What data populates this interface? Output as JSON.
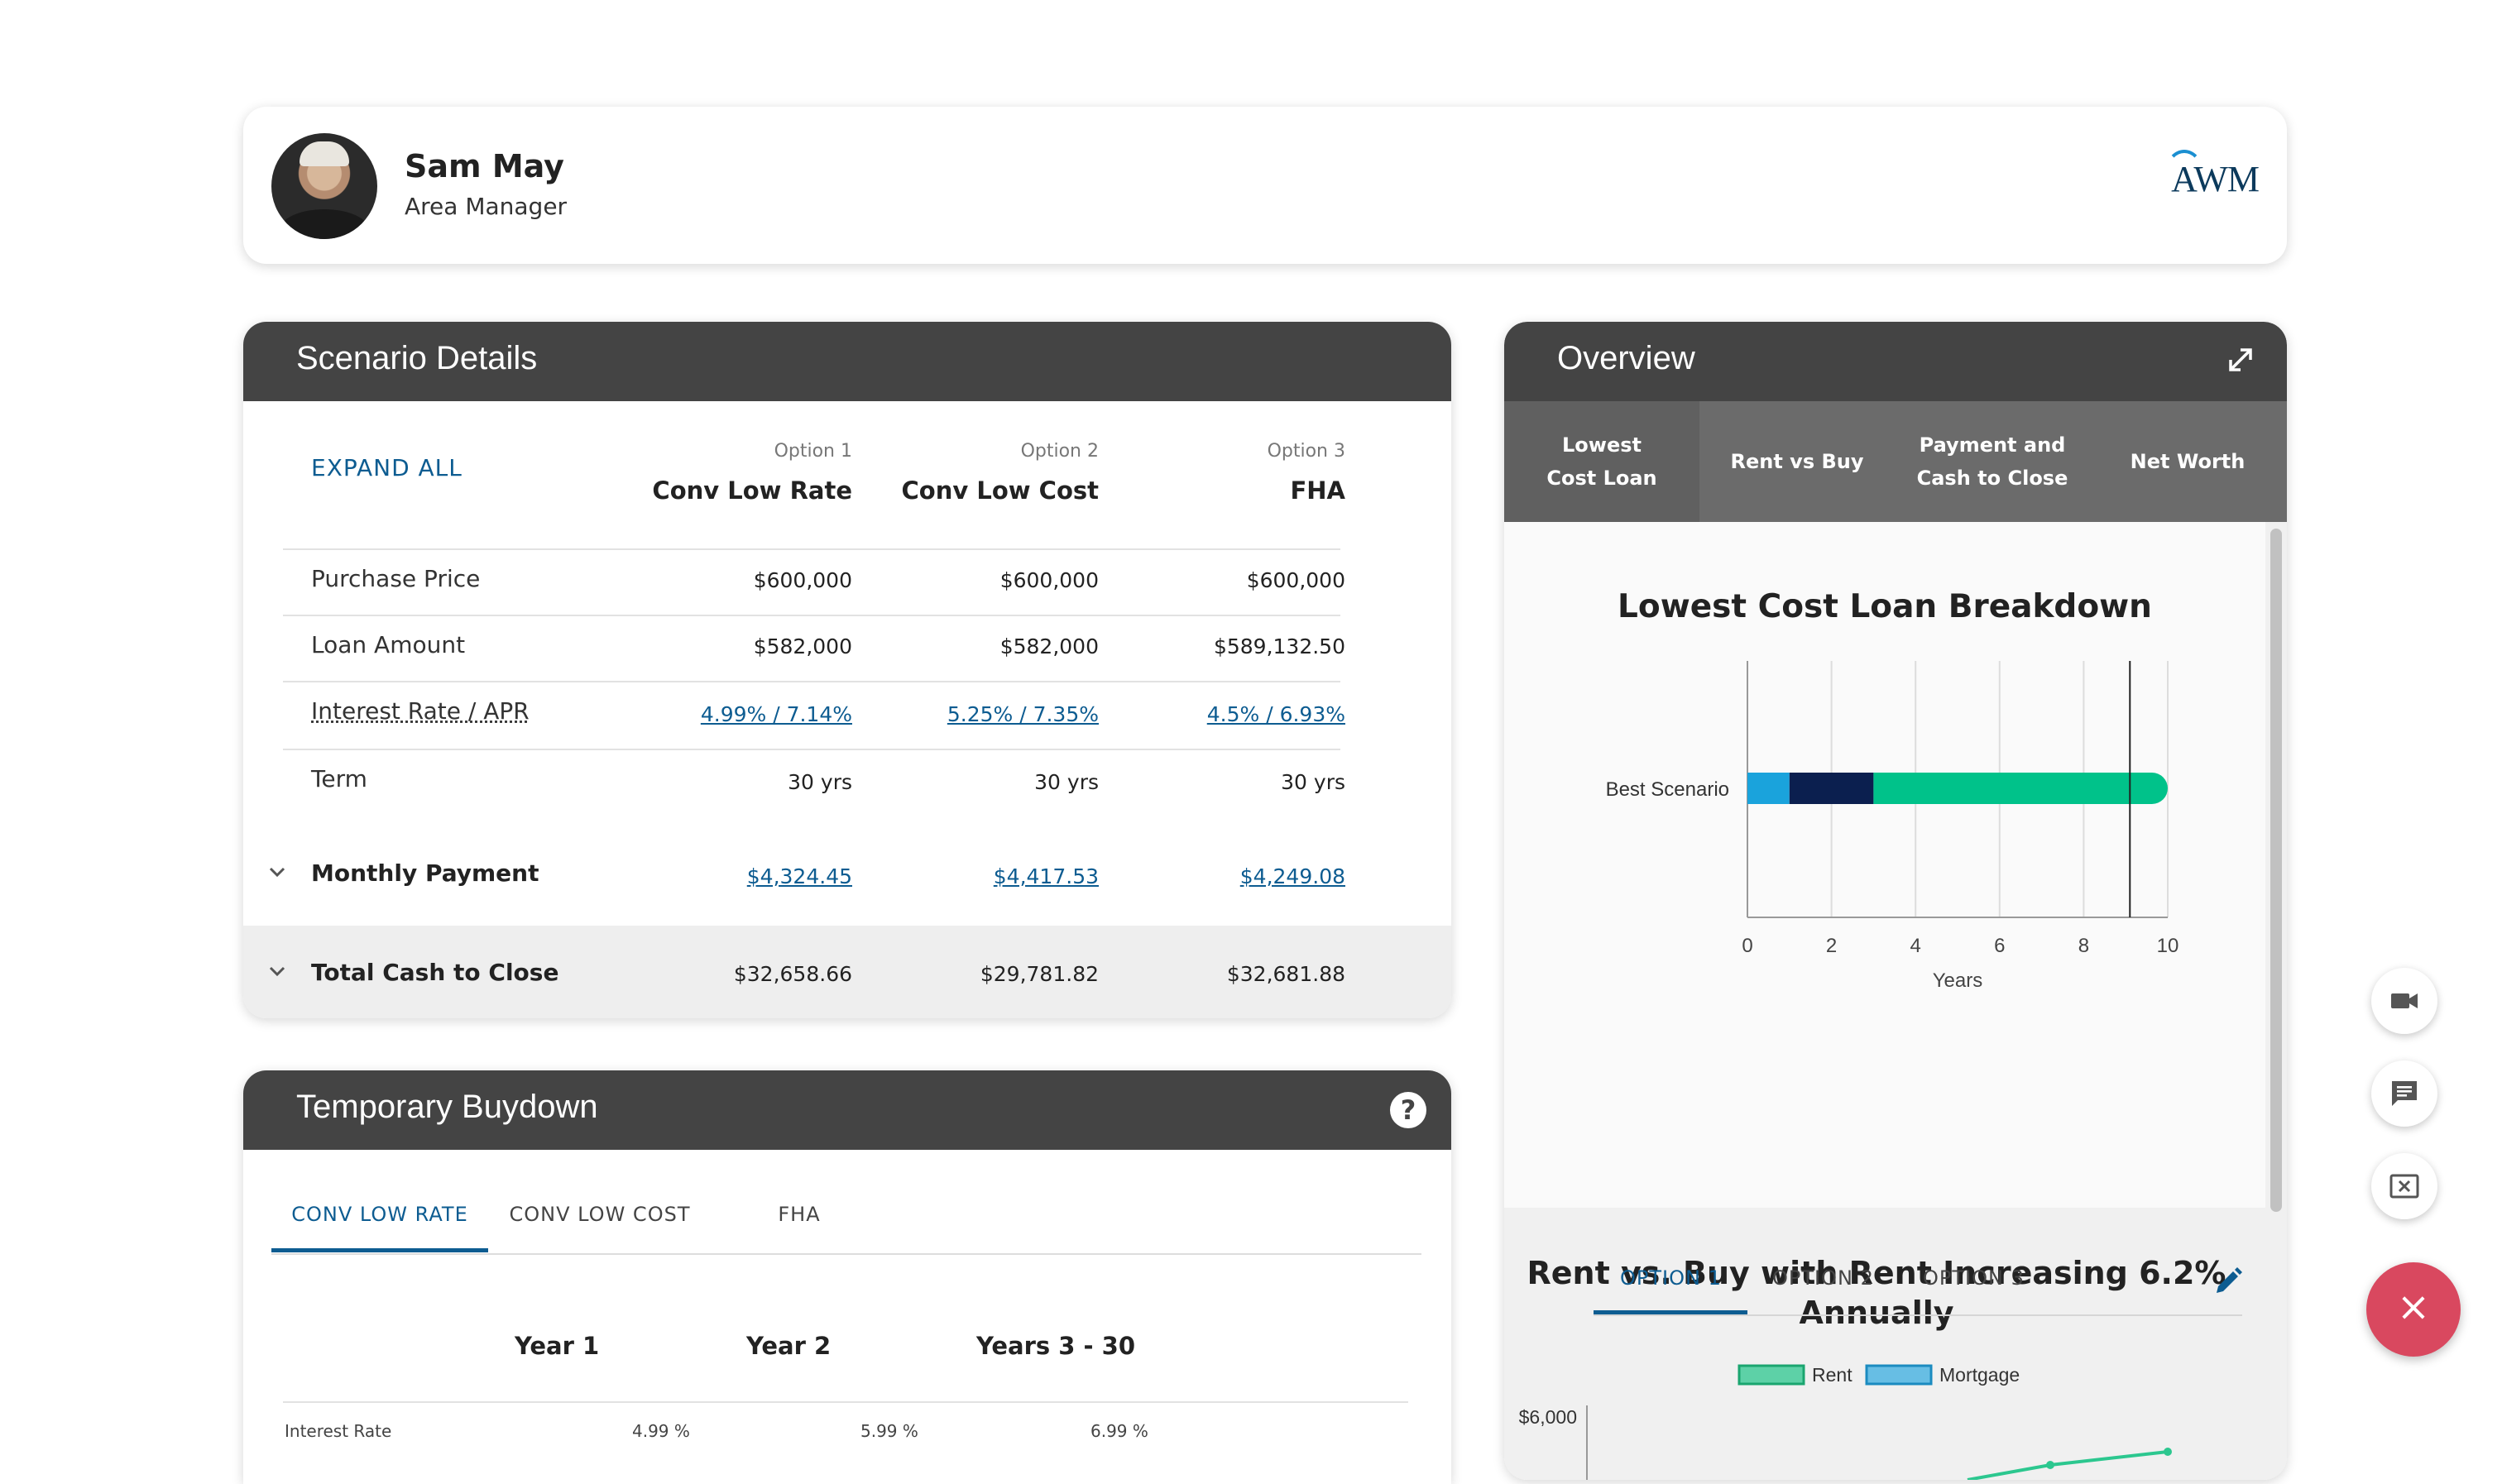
{
  "profile": {
    "name": "Sam May",
    "role": "Area Manager",
    "logo_text": "AWM"
  },
  "scenario": {
    "title": "Scenario Details",
    "expand_all": "EXPAND ALL",
    "options": [
      {
        "label": "Option 1",
        "name": "Conv Low Rate"
      },
      {
        "label": "Option 2",
        "name": "Conv Low Cost"
      },
      {
        "label": "Option 3",
        "name": "FHA"
      }
    ],
    "rows": {
      "purchase_price": {
        "label": "Purchase Price",
        "values": [
          "$600,000",
          "$600,000",
          "$600,000"
        ]
      },
      "loan_amount": {
        "label": "Loan Amount",
        "values": [
          "$582,000",
          "$582,000",
          "$589,132.50"
        ]
      },
      "interest_rate": {
        "label": "Interest Rate / APR",
        "values": [
          "4.99% / 7.14%",
          "5.25% / 7.35%",
          "4.5% / 6.93%"
        ]
      },
      "term": {
        "label": "Term",
        "values": [
          "30 yrs",
          "30 yrs",
          "30 yrs"
        ]
      },
      "monthly_payment": {
        "label": "Monthly Payment",
        "values": [
          "$4,324.45",
          "$4,417.53",
          "$4,249.08"
        ]
      },
      "cash_to_close": {
        "label": "Total Cash to Close",
        "values": [
          "$32,658.66",
          "$29,781.82",
          "$32,681.88"
        ]
      }
    }
  },
  "buydown": {
    "title": "Temporary Buydown",
    "help_icon": "?",
    "tabs": [
      "CONV LOW RATE",
      "CONV LOW COST",
      "FHA"
    ],
    "years": [
      "Year 1",
      "Year 2",
      "Years 3 - 30"
    ],
    "interest_label": "Interest Rate",
    "interest_values": [
      "4.99 %",
      "5.99 %",
      "6.99 %"
    ]
  },
  "overview": {
    "title": "Overview",
    "tabs": [
      "Lowest Cost Loan",
      "Rent vs Buy",
      "Payment and Cash to Close",
      "Net Worth"
    ],
    "section2_title": "Rent vs. Buy with Rent Increasing 6.2% Annually",
    "section2_tabs": [
      "OPTION 1",
      "OPTION 2",
      "OPTION 3"
    ]
  },
  "chart_data": [
    {
      "type": "bar",
      "orientation": "horizontal",
      "title": "Lowest Cost Loan Breakdown",
      "categories": [
        "Best Scenario"
      ],
      "series": [
        {
          "values": [
            1.0
          ],
          "color": "#1aa3dc"
        },
        {
          "values": [
            2.0
          ],
          "color": "#0b1f4f"
        },
        {
          "values": [
            7.0
          ],
          "color": "#00c28a"
        }
      ],
      "reference_line_x": 9.1,
      "xlabel": "Years",
      "xlim": [
        0,
        10
      ],
      "xticks": [
        "0",
        "2",
        "4",
        "6",
        "8",
        "10"
      ],
      "grid": true
    },
    {
      "type": "line",
      "series": [
        {
          "name": "Rent",
          "color": "#2cc78f"
        },
        {
          "name": "Mortgage",
          "color": "#3aaee0"
        }
      ],
      "ytick_visible": "$6,000",
      "legend": "top"
    }
  ],
  "colors": {
    "accent": "#0d5c91",
    "header": "#444444",
    "fab_close": "#d9485f"
  },
  "fabs": {
    "video_icon": "video-icon",
    "chat_icon": "chat-icon",
    "screen_icon": "screen-close-icon",
    "close_symbol": "×"
  }
}
